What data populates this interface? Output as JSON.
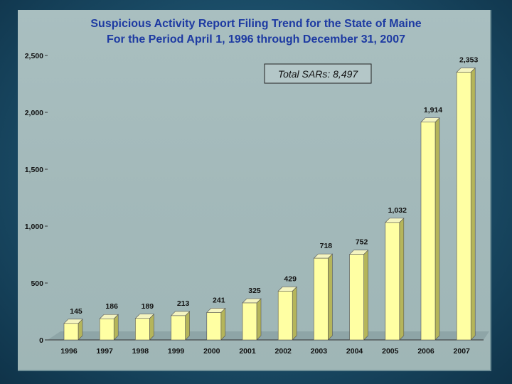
{
  "chart_data": {
    "type": "bar",
    "title": "Suspicious Activity Report Filing Trend for the State of Maine",
    "subtitle": "For the Period April 1, 1996 through December 31, 2007",
    "categories": [
      "1996",
      "1997",
      "1998",
      "1999",
      "2000",
      "2001",
      "2002",
      "2003",
      "2004",
      "2005",
      "2006",
      "2007"
    ],
    "values": [
      145,
      186,
      189,
      213,
      241,
      325,
      429,
      718,
      752,
      1032,
      1914,
      2353
    ],
    "value_labels": [
      "145",
      "186",
      "189",
      "213",
      "241",
      "325",
      "429",
      "718",
      "752",
      "1,032",
      "1,914",
      "2,353"
    ],
    "ylim": [
      0,
      2500
    ],
    "yticks": [
      0,
      500,
      1000,
      1500,
      2000,
      2500
    ],
    "ytick_labels": [
      "0",
      "500",
      "1,000",
      "1,500",
      "2,000",
      "2,500"
    ],
    "xlabel": "",
    "ylabel": "",
    "grid": false,
    "legend": "none",
    "annotation": "Total SARs: 8,497",
    "colors": {
      "bar_front": "#ffffa3",
      "bar_side": "#b5b55a",
      "bar_top": "#f4f4c0",
      "title": "#1d3aa2",
      "panel": "#a6bcbd",
      "background": "#1b4d68"
    }
  }
}
